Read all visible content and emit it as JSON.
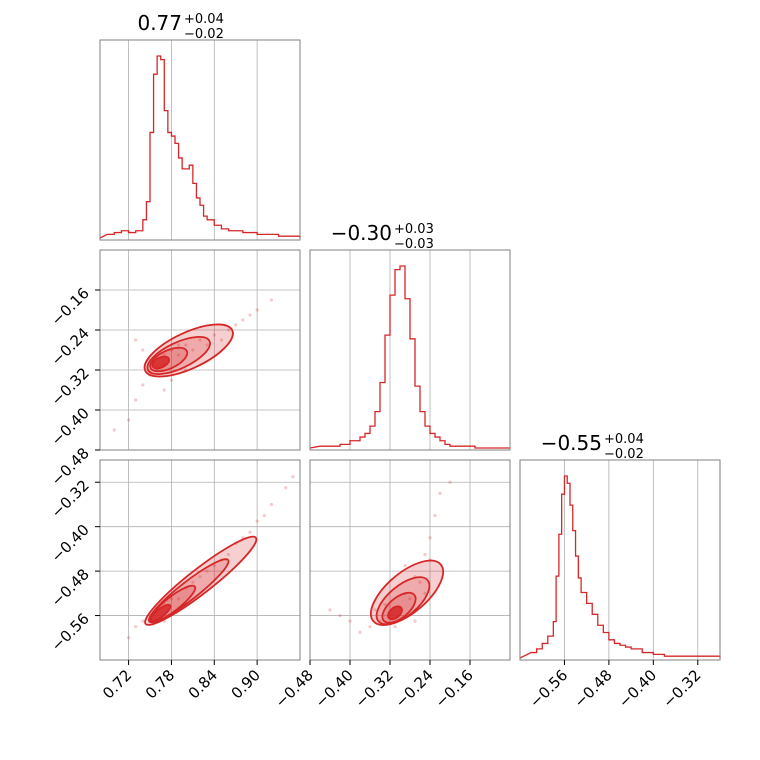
{
  "chart_data": {
    "type": "corner",
    "color": "#d62728",
    "grid": true,
    "parameters": [
      {
        "title": {
          "median": "0.77",
          "plus": "+0.04",
          "minus": "−0.02"
        },
        "range": [
          0.68,
          0.96
        ],
        "ticks": [
          0.72,
          0.78,
          0.84,
          0.9
        ],
        "tick_labels": [
          "0.72",
          "0.78",
          "0.84",
          "0.90"
        ],
        "histogram": {
          "x": [
            0.69,
            0.7,
            0.71,
            0.72,
            0.73,
            0.74,
            0.745,
            0.75,
            0.755,
            0.76,
            0.765,
            0.77,
            0.775,
            0.78,
            0.785,
            0.79,
            0.795,
            0.8,
            0.805,
            0.81,
            0.815,
            0.82,
            0.825,
            0.83,
            0.84,
            0.85,
            0.86,
            0.88,
            0.9,
            0.93,
            0.95
          ],
          "y": [
            2,
            3,
            4,
            3,
            4,
            10,
            20,
            58,
            90,
            100,
            98,
            70,
            58,
            56,
            52,
            44,
            38,
            38,
            40,
            30,
            22,
            18,
            12,
            10,
            7,
            5,
            4,
            3,
            2,
            1,
            1
          ]
        }
      },
      {
        "title": {
          "median": "−0.30",
          "plus": "+0.03",
          "minus": "−0.03"
        },
        "range": [
          -0.48,
          -0.08
        ],
        "ticks": [
          -0.48,
          -0.4,
          -0.32,
          -0.24,
          -0.16
        ],
        "tick_labels": [
          "−0.48",
          "−0.40",
          "−0.32",
          "−0.24",
          "−0.16"
        ],
        "histogram": {
          "x": [
            -0.46,
            -0.44,
            -0.42,
            -0.4,
            -0.38,
            -0.37,
            -0.36,
            -0.35,
            -0.34,
            -0.33,
            -0.32,
            -0.31,
            -0.3,
            -0.29,
            -0.28,
            -0.27,
            -0.26,
            -0.25,
            -0.24,
            -0.23,
            -0.22,
            -0.21,
            -0.2,
            -0.18,
            -0.15
          ],
          "y": [
            1,
            1,
            2,
            4,
            6,
            8,
            12,
            20,
            36,
            62,
            84,
            98,
            100,
            82,
            60,
            34,
            20,
            12,
            8,
            6,
            4,
            2,
            1,
            1,
            0
          ]
        }
      },
      {
        "title": {
          "median": "−0.55",
          "plus": "+0.04",
          "minus": "−0.02"
        },
        "range": [
          -0.64,
          -0.28
        ],
        "ticks": [
          -0.56,
          -0.48,
          -0.4,
          -0.32
        ],
        "tick_labels": [
          "−0.56",
          "−0.48",
          "−0.40",
          "−0.32"
        ],
        "histogram": {
          "x": [
            -0.62,
            -0.61,
            -0.6,
            -0.59,
            -0.58,
            -0.575,
            -0.57,
            -0.565,
            -0.56,
            -0.555,
            -0.55,
            -0.545,
            -0.54,
            -0.535,
            -0.53,
            -0.52,
            -0.51,
            -0.5,
            -0.49,
            -0.48,
            -0.47,
            -0.46,
            -0.45,
            -0.44,
            -0.42,
            -0.4,
            -0.38,
            -0.35,
            -0.32
          ],
          "y": [
            3,
            5,
            8,
            12,
            20,
            45,
            68,
            90,
            100,
            96,
            84,
            70,
            56,
            44,
            36,
            30,
            24,
            18,
            14,
            10,
            8,
            7,
            6,
            5,
            3,
            2,
            1,
            1,
            1
          ]
        }
      }
    ],
    "pairs": [
      {
        "x_param": 0,
        "y_param": 1,
        "center": [
          0.765,
          -0.305
        ],
        "samples": [
          [
            0.76,
            -0.31
          ],
          [
            0.75,
            -0.3
          ],
          [
            0.77,
            -0.29
          ],
          [
            0.78,
            -0.28
          ],
          [
            0.79,
            -0.27
          ],
          [
            0.8,
            -0.27
          ],
          [
            0.82,
            -0.26
          ],
          [
            0.84,
            -0.25
          ],
          [
            0.86,
            -0.24
          ],
          [
            0.88,
            -0.22
          ],
          [
            0.9,
            -0.2
          ],
          [
            0.92,
            -0.18
          ],
          [
            0.74,
            -0.35
          ],
          [
            0.73,
            -0.38
          ],
          [
            0.72,
            -0.42
          ],
          [
            0.7,
            -0.44
          ],
          [
            0.75,
            -0.33
          ],
          [
            0.76,
            -0.32
          ],
          [
            0.77,
            -0.31
          ],
          [
            0.79,
            -0.29
          ],
          [
            0.81,
            -0.28
          ],
          [
            0.83,
            -0.27
          ],
          [
            0.85,
            -0.26
          ],
          [
            0.87,
            -0.23
          ],
          [
            0.89,
            -0.21
          ],
          [
            0.77,
            -0.36
          ],
          [
            0.78,
            -0.34
          ],
          [
            0.8,
            -0.32
          ],
          [
            0.74,
            -0.28
          ],
          [
            0.73,
            -0.26
          ]
        ]
      },
      {
        "x_param": 0,
        "y_param": 2,
        "center": [
          0.765,
          -0.555
        ],
        "samples": [
          [
            0.75,
            -0.56
          ],
          [
            0.76,
            -0.55
          ],
          [
            0.77,
            -0.54
          ],
          [
            0.78,
            -0.53
          ],
          [
            0.8,
            -0.51
          ],
          [
            0.82,
            -0.49
          ],
          [
            0.84,
            -0.47
          ],
          [
            0.86,
            -0.45
          ],
          [
            0.88,
            -0.42
          ],
          [
            0.9,
            -0.39
          ],
          [
            0.92,
            -0.36
          ],
          [
            0.94,
            -0.33
          ],
          [
            0.95,
            -0.31
          ],
          [
            0.74,
            -0.57
          ],
          [
            0.73,
            -0.58
          ],
          [
            0.72,
            -0.6
          ],
          [
            0.76,
            -0.57
          ],
          [
            0.79,
            -0.53
          ],
          [
            0.81,
            -0.5
          ],
          [
            0.83,
            -0.48
          ],
          [
            0.85,
            -0.46
          ],
          [
            0.87,
            -0.43
          ],
          [
            0.89,
            -0.41
          ],
          [
            0.91,
            -0.38
          ],
          [
            0.77,
            -0.57
          ],
          [
            0.8,
            -0.54
          ]
        ]
      },
      {
        "x_param": 1,
        "y_param": 2,
        "center": [
          -0.31,
          -0.555
        ],
        "samples": [
          [
            -0.32,
            -0.56
          ],
          [
            -0.3,
            -0.55
          ],
          [
            -0.28,
            -0.53
          ],
          [
            -0.26,
            -0.5
          ],
          [
            -0.24,
            -0.46
          ],
          [
            -0.24,
            -0.42
          ],
          [
            -0.23,
            -0.38
          ],
          [
            -0.22,
            -0.34
          ],
          [
            -0.2,
            -0.32
          ],
          [
            -0.34,
            -0.57
          ],
          [
            -0.36,
            -0.58
          ],
          [
            -0.38,
            -0.59
          ],
          [
            -0.4,
            -0.57
          ],
          [
            -0.42,
            -0.56
          ],
          [
            -0.44,
            -0.55
          ],
          [
            -0.33,
            -0.54
          ],
          [
            -0.29,
            -0.52
          ],
          [
            -0.27,
            -0.49
          ],
          [
            -0.25,
            -0.45
          ],
          [
            -0.35,
            -0.55
          ],
          [
            -0.31,
            -0.58
          ],
          [
            -0.27,
            -0.57
          ],
          [
            -0.25,
            -0.52
          ],
          [
            -0.29,
            -0.47
          ]
        ]
      }
    ]
  }
}
